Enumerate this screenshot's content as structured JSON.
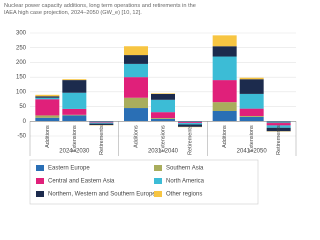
{
  "chart_data": {
    "type": "stacked_bar",
    "title": "Nuclear power capacity additions, long term operations and retirements in the IAEA high case projection, 2024–2050 (GW_e) [10, 12].",
    "categories": [
      "Additions",
      "Extensions",
      "Retirements",
      "Additions",
      "Extensions",
      "Retirements",
      "Additions",
      "Extensions",
      "Retirements"
    ],
    "groups": [
      "2024–2030",
      "2031–2040",
      "2041–2050"
    ],
    "series": [
      {
        "name": "Eastern Europe",
        "color": "#2a6fb5",
        "values": [
          12,
          20,
          -3,
          45,
          8,
          -3,
          35,
          15,
          -5
        ]
      },
      {
        "name": "Southern Asia",
        "color": "#a9ad5c",
        "values": [
          8,
          2,
          0,
          35,
          3,
          0,
          30,
          3,
          -1
        ]
      },
      {
        "name": "Central and Eastern Asia",
        "color": "#e0207a",
        "values": [
          55,
          20,
          -2,
          70,
          20,
          -3,
          75,
          25,
          -8
        ]
      },
      {
        "name": "North America",
        "color": "#3cbcd6",
        "values": [
          5,
          55,
          -3,
          45,
          42,
          -5,
          80,
          50,
          -8
        ]
      },
      {
        "name": "Northern, Western and Southern Europe",
        "color": "#1c2b4d",
        "values": [
          5,
          43,
          -5,
          30,
          20,
          -8,
          35,
          50,
          -12
        ]
      },
      {
        "name": "Other regions",
        "color": "#f7c542",
        "values": [
          5,
          3,
          -1,
          30,
          2,
          -1,
          37,
          5,
          -1
        ]
      }
    ],
    "ylim": [
      -50,
      300
    ],
    "yticks": [
      -50,
      0,
      50,
      100,
      150,
      200,
      250,
      300
    ],
    "grid": true
  }
}
